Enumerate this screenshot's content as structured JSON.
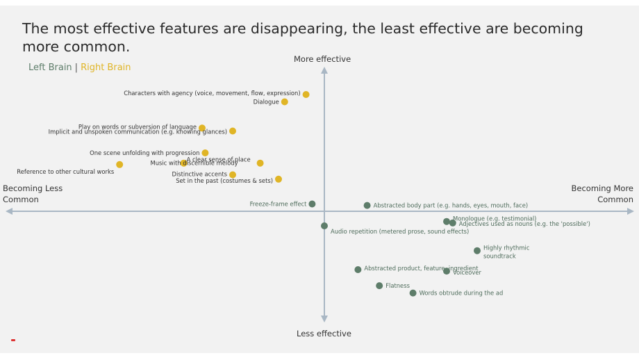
{
  "title": "The most effective features are disappearing, the least effective are becoming more common.",
  "legend": {
    "left": "Left Brain",
    "separator": "|",
    "right": "Right Brain"
  },
  "colors": {
    "left_brain": "#5e7d6a",
    "right_brain": "#e0b526",
    "axis": "#a9b7c4",
    "background": "#f2f2f2"
  },
  "chart_data": {
    "type": "scatter",
    "xlabel_left": "Becoming Less Common",
    "xlabel_right": "Becoming More Common",
    "ylabel_top": "More effective",
    "ylabel_bottom": "Less effective",
    "xlim": [
      -1,
      1
    ],
    "ylim": [
      -1,
      1
    ],
    "grid": false,
    "legend_position": "top-left",
    "series": [
      {
        "name": "Right Brain",
        "points": [
          {
            "label": "Characters with agency (voice, movement, flow, expression)",
            "x": -0.06,
            "y": 0.8
          },
          {
            "label": "Dialogue",
            "x": -0.13,
            "y": 0.75
          },
          {
            "label": "Play on words or subversion of language",
            "x": -0.4,
            "y": 0.57
          },
          {
            "label": "Implicit and unspoken communication (e.g. knowing glances)",
            "x": -0.3,
            "y": 0.55
          },
          {
            "label": "One scene unfolding with progression",
            "x": -0.39,
            "y": 0.4
          },
          {
            "label": "A clear sense of place",
            "x": -0.21,
            "y": 0.33
          },
          {
            "label": "Music with discernible melody",
            "x": -0.46,
            "y": 0.33
          },
          {
            "label": "Reference to other cultural works",
            "x": -0.67,
            "y": 0.32
          },
          {
            "label": "Distinctive accents",
            "x": -0.3,
            "y": 0.25
          },
          {
            "label": "Set in the past (costumes & sets)",
            "x": -0.15,
            "y": 0.22
          }
        ]
      },
      {
        "name": "Left Brain",
        "points": [
          {
            "label": "Freeze-frame effect",
            "x": -0.04,
            "y": 0.05
          },
          {
            "label": "Abstracted body part (e.g. hands, eyes, mouth, face)",
            "x": 0.14,
            "y": 0.04
          },
          {
            "label": "Audio repetition (metered prose, sound effects)",
            "x": 0.0,
            "y": -0.1
          },
          {
            "label": "Monologue (e.g. testimonial)",
            "x": 0.4,
            "y": -0.07
          },
          {
            "label": "Adjectives used as nouns (e.g. the 'possible')",
            "x": 0.42,
            "y": -0.08
          },
          {
            "label": "Highly rhythmic soundtrack",
            "x": 0.5,
            "y": -0.27
          },
          {
            "label": "Abstracted product, feature, ingredient",
            "x": 0.11,
            "y": -0.4
          },
          {
            "label": "Voiceover",
            "x": 0.4,
            "y": -0.41
          },
          {
            "label": "Flatness",
            "x": 0.18,
            "y": -0.51
          },
          {
            "label": "Words obtrude during the ad",
            "x": 0.29,
            "y": -0.56
          }
        ]
      }
    ]
  }
}
